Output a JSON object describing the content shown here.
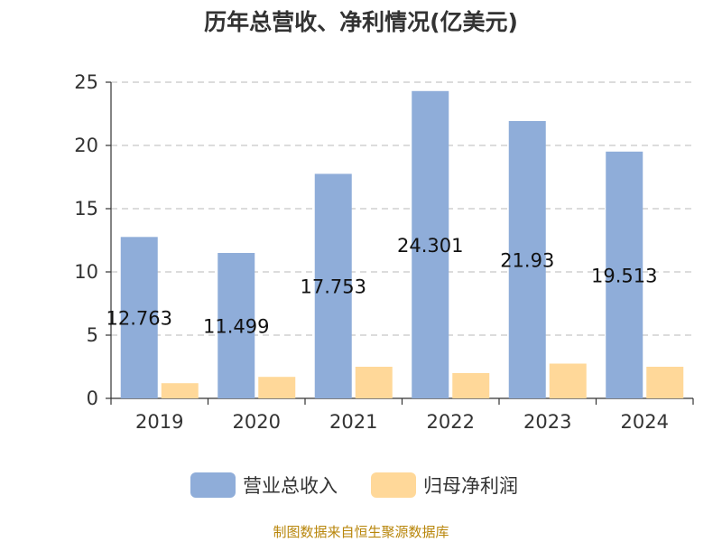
{
  "chart_data": {
    "type": "bar",
    "title": "历年总营收、净利情况(亿美元)",
    "categories": [
      "2019",
      "2020",
      "2021",
      "2022",
      "2023",
      "2024"
    ],
    "series": [
      {
        "name": "营业总收入",
        "values": [
          12.763,
          11.499,
          17.753,
          24.301,
          21.93,
          19.513
        ],
        "color": "#8fadd9",
        "labels": [
          "12.763",
          "11.499",
          "17.753",
          "24.301",
          "21.93",
          "19.513"
        ]
      },
      {
        "name": "归母净利润",
        "values": [
          1.2,
          1.7,
          2.5,
          2.0,
          2.75,
          2.5
        ],
        "color": "#ffd899"
      }
    ],
    "ylim": [
      0,
      25
    ],
    "yticks": [
      "0",
      "5",
      "10",
      "15",
      "20",
      "25"
    ],
    "grid": true,
    "legend": "bottom"
  },
  "source": "制图数据来自恒生聚源数据库"
}
